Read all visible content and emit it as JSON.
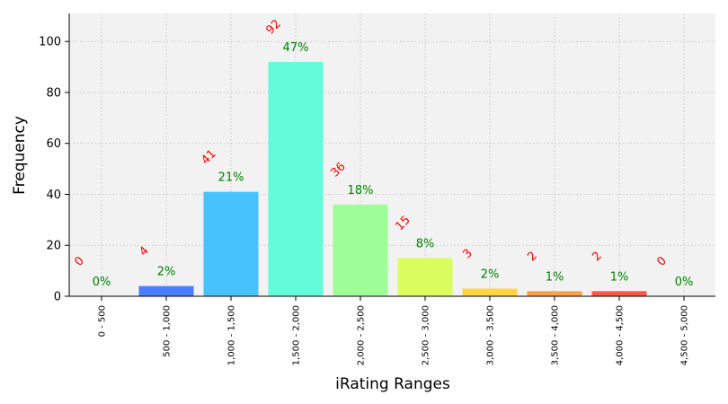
{
  "chart_data": {
    "type": "bar",
    "xlabel": "iRating Ranges",
    "ylabel": "Frequency",
    "ylim": [
      0,
      111
    ],
    "yticks": [
      0,
      20,
      40,
      60,
      80,
      100
    ],
    "grid": true,
    "categories": [
      "0 - 500",
      "500 - 1,000",
      "1,000 - 1,500",
      "1,500 - 2,000",
      "2,000 - 2,500",
      "2,500 - 3,000",
      "3,000 - 3,500",
      "3,500 - 4,000",
      "4,000 - 4,500",
      "4,500 - 5,000"
    ],
    "values": [
      0,
      4,
      41,
      92,
      36,
      15,
      3,
      2,
      2,
      0
    ],
    "count_labels": [
      "0",
      "4",
      "41",
      "92",
      "36",
      "15",
      "3",
      "2",
      "2",
      "0"
    ],
    "percent_labels": [
      "0%",
      "2%",
      "21%",
      "47%",
      "18%",
      "8%",
      "2%",
      "1%",
      "1%",
      "0%"
    ],
    "colors": [
      "#3a2dff",
      "#4a7dff",
      "#47c2fd",
      "#62fcdb",
      "#a0fe98",
      "#dcfd5e",
      "#fed442",
      "#ff9f4a",
      "#ff5743",
      "#d92f00"
    ],
    "label_colors": {
      "count": "#ff0000",
      "percent": "#008000"
    },
    "background": "#f2f2f2"
  }
}
